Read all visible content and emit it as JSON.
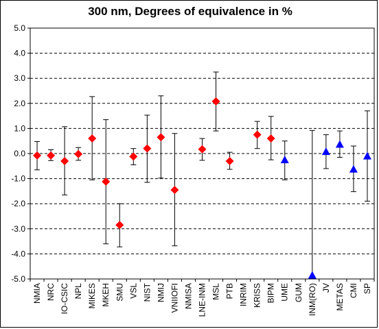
{
  "chart_data": {
    "type": "scatter",
    "title": "300 nm, Degrees of equivalence in %",
    "xlabel": "",
    "ylabel": "",
    "ylim": [
      -5.0,
      5.0
    ],
    "yticks": [
      "5.0",
      "4.0",
      "3.0",
      "2.0",
      "1.0",
      "0.0",
      "-1.0",
      "-2.0",
      "-3.0",
      "-4.0",
      "-5.0"
    ],
    "grid": "horizontal-dashed",
    "categories": [
      "NMIA",
      "NRC",
      "IO-CSIC",
      "NPL",
      "MIKES",
      "MKEH",
      "SMU",
      "VSL",
      "NIST",
      "NMIJ",
      "VNIIOFI",
      "NMISA",
      "LNE-INM",
      "MSL",
      "PTB",
      "INRIM",
      "KRISS",
      "BIPM",
      "UME",
      "GUM",
      "INM(RO)",
      "JV",
      "METAS",
      "CMI",
      "SP"
    ],
    "series": [
      {
        "marker": "diamond",
        "color": "#ff0000",
        "points": [
          {
            "category": "NMIA",
            "value": -0.08,
            "low": -0.65,
            "high": 0.48
          },
          {
            "category": "NRC",
            "value": -0.08,
            "low": -0.28,
            "high": 0.15
          },
          {
            "category": "IO-CSIC",
            "value": -0.3,
            "low": -1.65,
            "high": 1.07
          },
          {
            "category": "NPL",
            "value": -0.02,
            "low": -0.27,
            "high": 0.24
          },
          {
            "category": "MIKES",
            "value": 0.6,
            "low": -1.05,
            "high": 2.27
          },
          {
            "category": "MKEH",
            "value": -1.12,
            "low": -3.6,
            "high": 1.35
          },
          {
            "category": "SMU",
            "value": -2.85,
            "low": -3.72,
            "high": -2.0
          },
          {
            "category": "VSL",
            "value": -0.12,
            "low": -0.45,
            "high": 0.2
          },
          {
            "category": "NIST",
            "value": 0.2,
            "low": -1.15,
            "high": 1.53
          },
          {
            "category": "NMIJ",
            "value": 0.65,
            "low": -0.98,
            "high": 2.3
          },
          {
            "category": "VNIIOFI",
            "value": -1.45,
            "low": -3.68,
            "high": 0.8
          },
          {
            "category": "LNE-INM",
            "value": 0.17,
            "low": -0.27,
            "high": 0.6
          },
          {
            "category": "MSL",
            "value": 2.08,
            "low": 0.9,
            "high": 3.25
          },
          {
            "category": "PTB",
            "value": -0.3,
            "low": -0.63,
            "high": 0.05
          },
          {
            "category": "KRISS",
            "value": 0.75,
            "low": 0.2,
            "high": 1.28
          },
          {
            "category": "BIPM",
            "value": 0.6,
            "low": -0.25,
            "high": 1.48
          }
        ]
      },
      {
        "marker": "triangle",
        "color": "#0000ff",
        "points": [
          {
            "category": "UME",
            "value": -0.25,
            "low": -1.05,
            "high": 0.5
          },
          {
            "category": "INM(RO)",
            "value": -4.85,
            "low": -5.0,
            "high": 0.92
          },
          {
            "category": "JV",
            "value": 0.08,
            "low": -0.6,
            "high": 0.75
          },
          {
            "category": "METAS",
            "value": 0.37,
            "low": -0.15,
            "high": 0.9
          },
          {
            "category": "CMI",
            "value": -0.62,
            "low": -1.52,
            "high": 0.3
          },
          {
            "category": "SP",
            "value": -0.1,
            "low": -1.9,
            "high": 1.7
          }
        ]
      }
    ]
  }
}
